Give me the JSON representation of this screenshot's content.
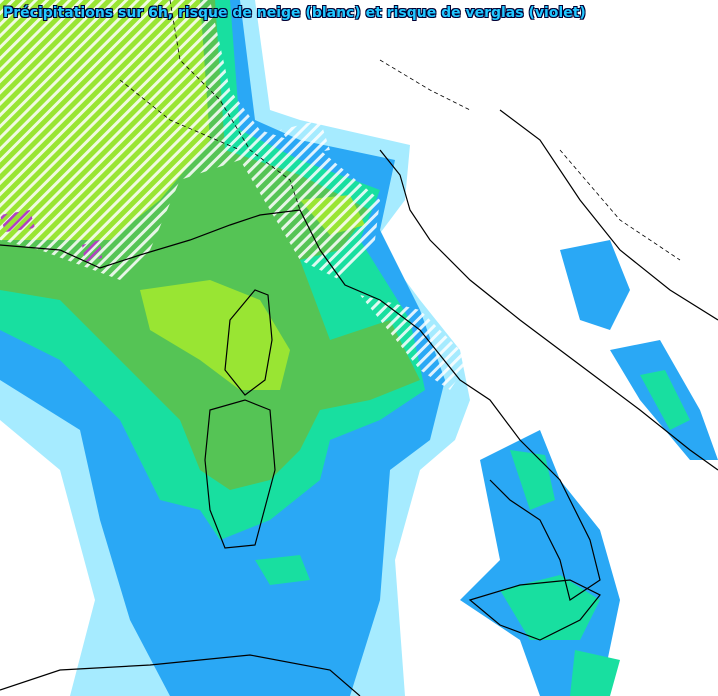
{
  "header": {
    "title": "Précipitations sur 6h, risque de neige (blanc) et risque de verglas (violet)"
  }
}
